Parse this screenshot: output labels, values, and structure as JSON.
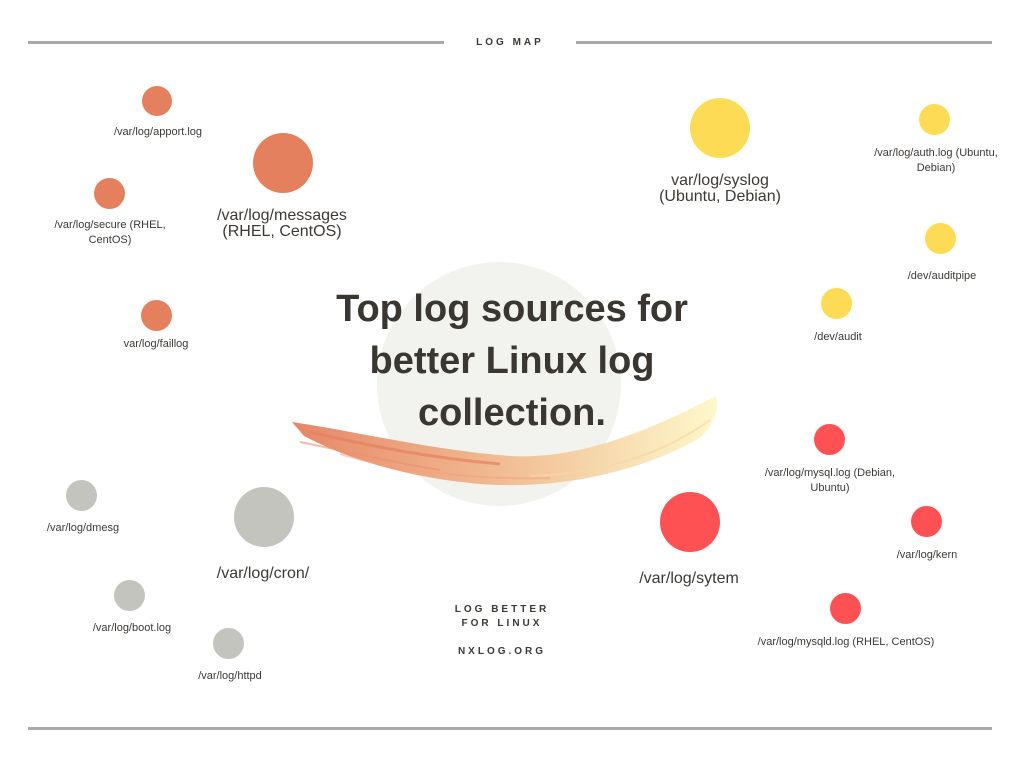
{
  "header": {
    "label": "LOG MAP"
  },
  "title": {
    "line1": "Top log sources for",
    "line2": "better Linux log",
    "line3": "collection."
  },
  "footer": {
    "tagline1": "LOG BETTER",
    "tagline2": "FOR LINUX",
    "site": "NXLOG.ORG"
  },
  "colors": {
    "orange": "#e5805f",
    "yellow": "#fedb55",
    "red": "#fd5153",
    "grey": "#c2c4bd",
    "rule": "#a9a9a9"
  },
  "groups": {
    "orange": {
      "main": {
        "line1": "/var/log/messages",
        "line2": "(RHEL, CentOS)"
      },
      "items": [
        {
          "line1": "/var/log/apport.log"
        },
        {
          "line1": "/var/log/secure (RHEL,",
          "line2": "CentOS)"
        },
        {
          "line1": "var/log/faillog"
        }
      ]
    },
    "yellow": {
      "main": {
        "line1": "var/log/syslog",
        "line2": "(Ubuntu, Debian)"
      },
      "items": [
        {
          "line1": "/var/log/auth.log (Ubuntu,",
          "line2": "Debian)"
        },
        {
          "line1": "/dev/auditpipe"
        },
        {
          "line1": "/dev/audit"
        }
      ]
    },
    "grey": {
      "main": {
        "line1": "/var/log/cron/"
      },
      "items": [
        {
          "line1": "/var/log/dmesg"
        },
        {
          "line1": "/var/log/boot.log"
        },
        {
          "line1": "/var/log/httpd"
        }
      ]
    },
    "red": {
      "main": {
        "line1": "/var/log/sytem"
      },
      "items": [
        {
          "line1": "/var/log/mysql.log (Debian,",
          "line2": "Ubuntu)"
        },
        {
          "line1": "/var/log/kern"
        },
        {
          "line1": "/var/log/mysqld.log (RHEL, CentOS)"
        }
      ]
    }
  }
}
